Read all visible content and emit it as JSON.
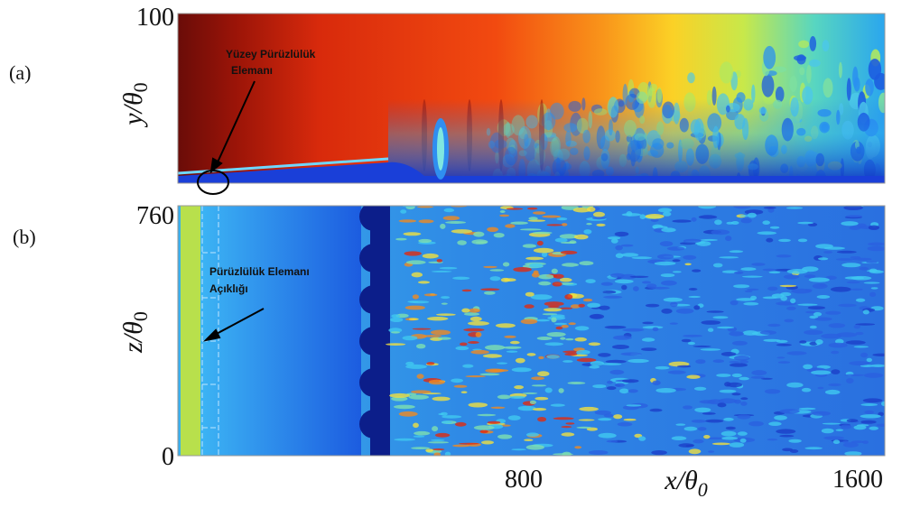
{
  "panels": [
    {
      "label": "(a)",
      "ylabel": {
        "main": "y/θ",
        "sub": "0"
      },
      "yticks": [
        100
      ],
      "annotation": [
        "Yüzey Pürüzlülük",
        "Elemanı"
      ]
    },
    {
      "label": "(b)",
      "ylabel": {
        "main": "z/θ",
        "sub": "0"
      },
      "yticks": [
        760,
        0
      ],
      "annotation": [
        "Pürüzlülük Elemanı",
        "Açıklığı"
      ]
    }
  ],
  "xaxis": {
    "label": {
      "main": "x/θ",
      "sub": "0"
    },
    "ticks": [
      800,
      1600
    ]
  }
}
